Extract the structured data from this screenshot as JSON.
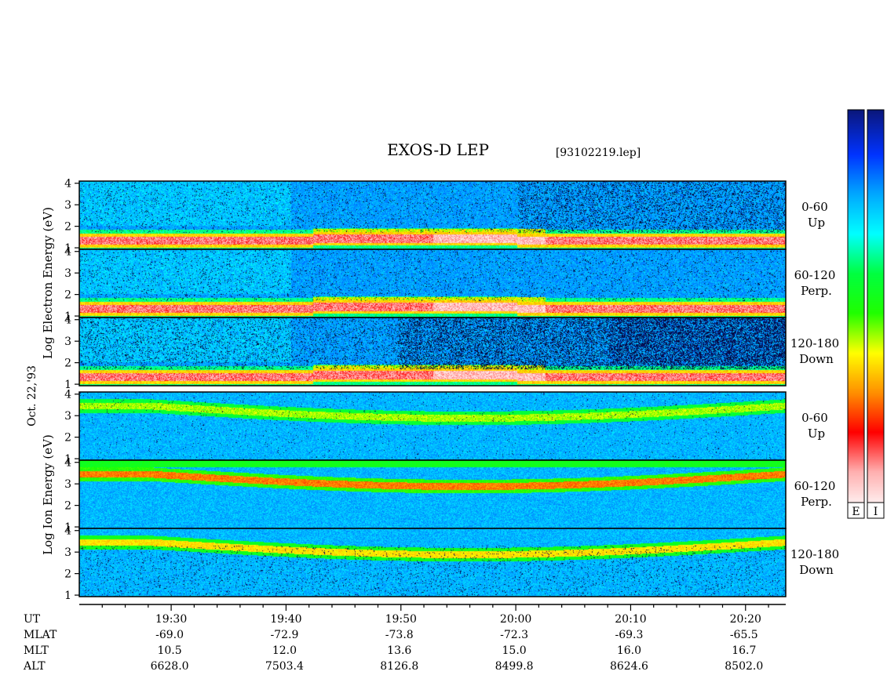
{
  "chart_data": {
    "type": "heatmap",
    "title": "EXOS-D LEP",
    "file_label": "[93102219.lep]",
    "date_label": "Oct. 22,'93",
    "electron_axis_label": [
      "Log",
      "Electron",
      "Energy",
      "(eV)"
    ],
    "ion_axis_label": [
      "Log",
      "Ion",
      "Energy",
      "(eV)"
    ],
    "y_ticks": [
      "1",
      "2",
      "3",
      "4"
    ],
    "y_range": [
      1,
      4.1
    ],
    "x_time_range": [
      "19:22",
      "20:23"
    ],
    "panels": [
      {
        "species": "Electron",
        "pitch_angle": "0-60",
        "direction": "Up"
      },
      {
        "species": "Electron",
        "pitch_angle": "60-120",
        "direction": "Perp."
      },
      {
        "species": "Electron",
        "pitch_angle": "120-180",
        "direction": "Down"
      },
      {
        "species": "Ion",
        "pitch_angle": "0-60",
        "direction": "Up"
      },
      {
        "species": "Ion",
        "pitch_angle": "60-120",
        "direction": "Perp."
      },
      {
        "species": "Ion",
        "pitch_angle": "120-180",
        "direction": "Down"
      }
    ],
    "orbit_rows": [
      {
        "label": "UT",
        "values": [
          "19:30",
          "19:40",
          "19:50",
          "20:00",
          "20:10",
          "20:20"
        ]
      },
      {
        "label": "MLAT",
        "values": [
          "-69.0",
          "-72.9",
          "-73.8",
          "-72.3",
          "-69.3",
          "-65.5"
        ]
      },
      {
        "label": "MLT",
        "values": [
          "10.5",
          "12.0",
          "13.6",
          "15.0",
          "16.0",
          "16.7"
        ]
      },
      {
        "label": "ALT",
        "values": [
          "6628.0",
          "7503.4",
          "8126.8",
          "8499.8",
          "8624.6",
          "8502.0"
        ]
      }
    ],
    "colorbars": [
      {
        "label": "E"
      },
      {
        "label": "I"
      }
    ],
    "colormap": [
      "#000000",
      "#0a1a8a",
      "#0033ff",
      "#00a8ff",
      "#00ffff",
      "#00ff40",
      "#20ff00",
      "#ffff00",
      "#ff9000",
      "#ff0000",
      "#ffb0b0",
      "#ffffff"
    ]
  }
}
